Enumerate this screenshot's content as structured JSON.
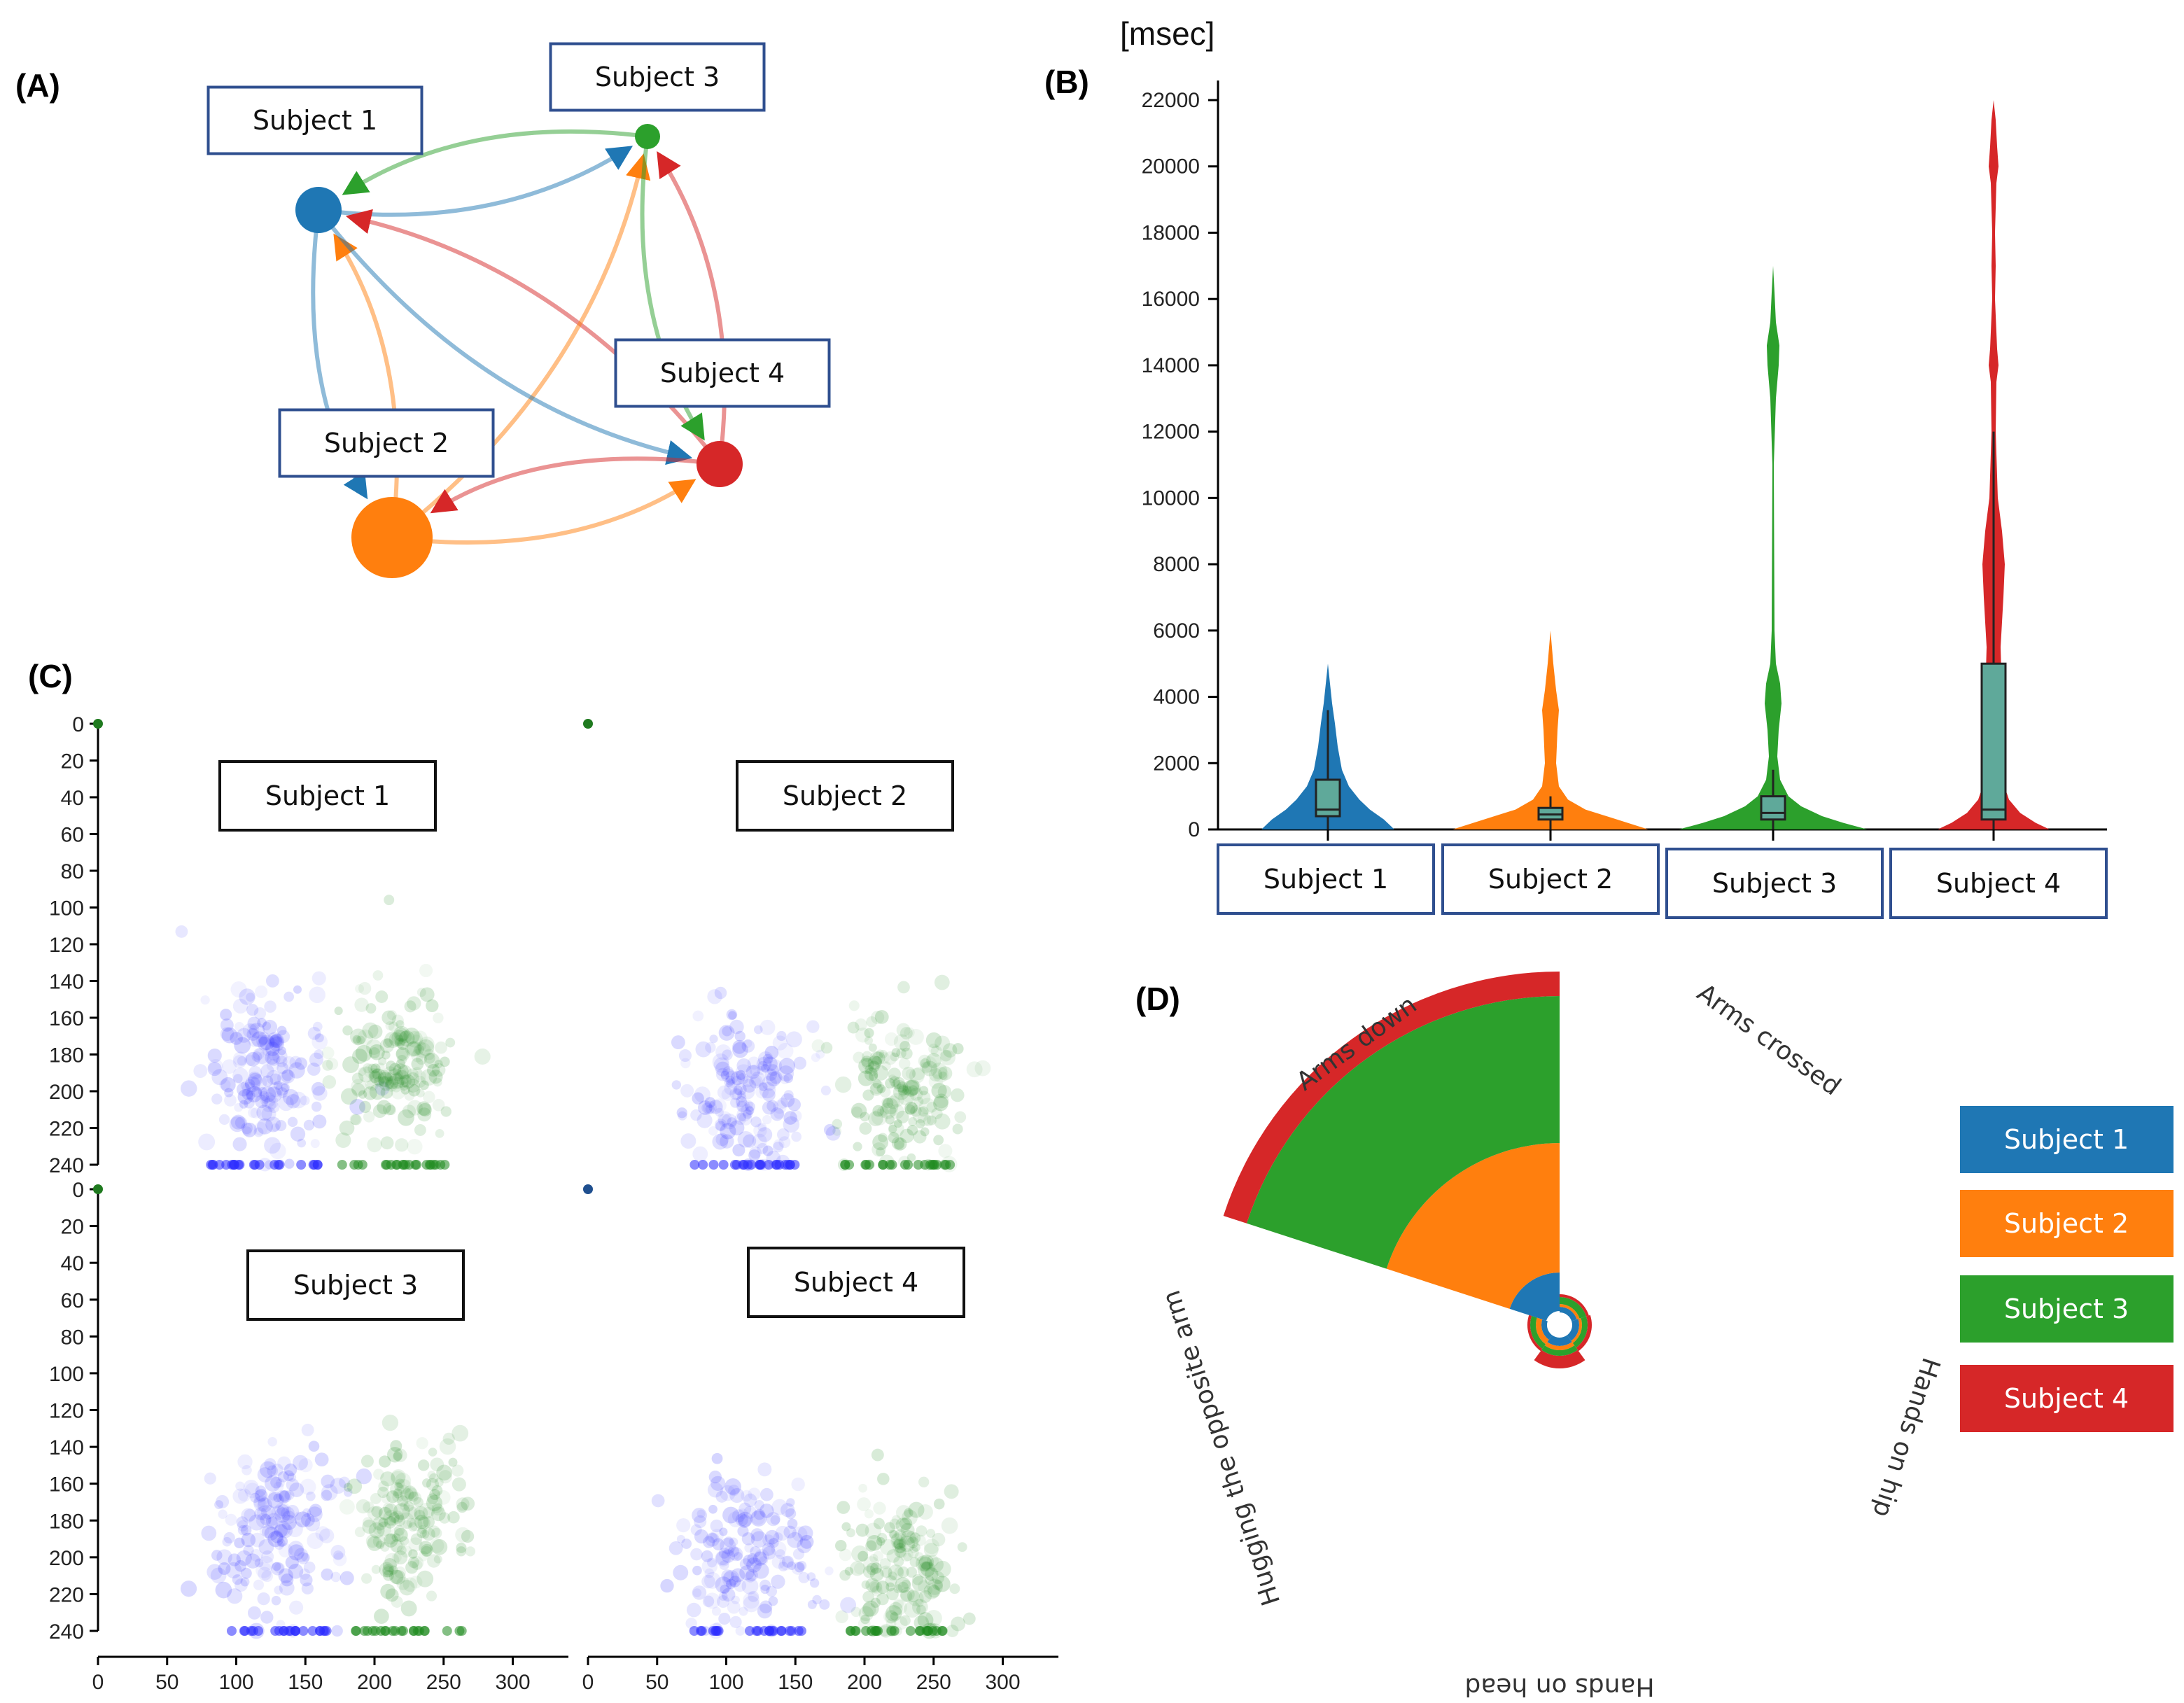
{
  "panels": {
    "a": "(A)",
    "b": "(B)",
    "c": "(C)",
    "d": "(D)"
  },
  "colors": {
    "subject1": "#1f77b4",
    "subject2": "#ff7f0e",
    "subject3": "#2ca02c",
    "subject4": "#d62728",
    "box": "#5fa99a",
    "scatter_blue": "#2b2bff",
    "scatter_green": "#1f8a1f"
  },
  "subjects": [
    "Subject 1",
    "Subject 2",
    "Subject 3",
    "Subject 4"
  ],
  "chart_data": [
    {
      "panel": "A",
      "type": "network",
      "nodes": [
        {
          "label": "Subject 1",
          "color": "#1f77b4",
          "size": "medium"
        },
        {
          "label": "Subject 2",
          "color": "#ff7f0e",
          "size": "large"
        },
        {
          "label": "Subject 3",
          "color": "#2ca02c",
          "size": "small"
        },
        {
          "label": "Subject 4",
          "color": "#d62728",
          "size": "medium"
        }
      ],
      "edges": [
        {
          "from": "Subject 3",
          "to": "Subject 1"
        },
        {
          "from": "Subject 1",
          "to": "Subject 3"
        },
        {
          "from": "Subject 4",
          "to": "Subject 1"
        },
        {
          "from": "Subject 1",
          "to": "Subject 2"
        },
        {
          "from": "Subject 2",
          "to": "Subject 1"
        },
        {
          "from": "Subject 2",
          "to": "Subject 3"
        },
        {
          "from": "Subject 3",
          "to": "Subject 4"
        },
        {
          "from": "Subject 4",
          "to": "Subject 3"
        },
        {
          "from": "Subject 1",
          "to": "Subject 4"
        },
        {
          "from": "Subject 2",
          "to": "Subject 4"
        },
        {
          "from": "Subject 4",
          "to": "Subject 2"
        }
      ]
    },
    {
      "panel": "B",
      "type": "violin",
      "ylabel": "[msec]",
      "ylim": [
        0,
        22000
      ],
      "yticks": [
        0,
        2000,
        4000,
        6000,
        8000,
        10000,
        12000,
        14000,
        16000,
        18000,
        20000,
        22000
      ],
      "categories": [
        "Subject 1",
        "Subject 2",
        "Subject 3",
        "Subject 4"
      ],
      "box": [
        {
          "q1": 400,
          "median": 600,
          "q3": 1500,
          "whisker_low": 0,
          "whisker_high": 3600
        },
        {
          "q1": 300,
          "median": 450,
          "q3": 650,
          "whisker_low": 0,
          "whisker_high": 1000
        },
        {
          "q1": 300,
          "median": 500,
          "q3": 1000,
          "whisker_low": 0,
          "whisker_high": 1800
        },
        {
          "q1": 300,
          "median": 600,
          "q3": 5000,
          "whisker_low": 0,
          "whisker_high": 12000
        }
      ],
      "max": [
        5000,
        6000,
        17000,
        22000
      ]
    },
    {
      "panel": "C",
      "type": "scatter",
      "xticks": [
        0,
        50,
        100,
        150,
        200,
        250,
        300
      ],
      "yticks": [
        0,
        20,
        40,
        60,
        80,
        100,
        120,
        140,
        160,
        180,
        200,
        220,
        240
      ],
      "xlim": [
        0,
        320
      ],
      "ylim": [
        240,
        0
      ],
      "subplots": [
        {
          "title": "Subject 1",
          "blue_center": [
            120,
            190
          ],
          "green_center": [
            215,
            185
          ]
        },
        {
          "title": "Subject 2",
          "blue_center": [
            115,
            200
          ],
          "green_center": [
            225,
            200
          ]
        },
        {
          "title": "Subject 3",
          "blue_center": [
            130,
            185
          ],
          "green_center": [
            225,
            180
          ]
        },
        {
          "title": "Subject 4",
          "blue_center": [
            115,
            200
          ],
          "green_center": [
            225,
            205
          ]
        }
      ]
    },
    {
      "panel": "D",
      "type": "radial_bar",
      "categories": [
        "Arms crossed",
        "Hands on hip",
        "Hands on head",
        "Hugging the opposite arm",
        "Arms down"
      ],
      "series": [
        "Subject 1",
        "Subject 2",
        "Subject 3",
        "Subject 4"
      ],
      "legend_position": "right"
    }
  ]
}
